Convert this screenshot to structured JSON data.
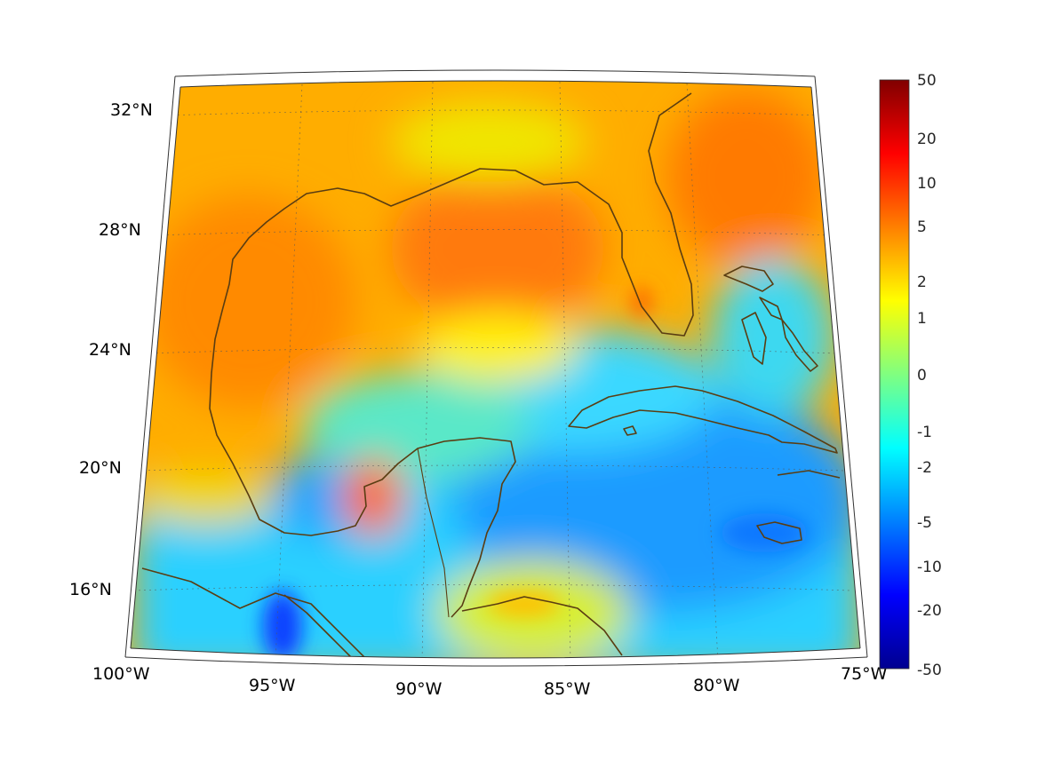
{
  "map": {
    "projection": "conic",
    "extent": {
      "lon": [
        -100,
        -75
      ],
      "lat": [
        14,
        32
      ]
    },
    "lon_tick_labels": [
      "100°W",
      "95°W",
      "90°W",
      "85°W",
      "80°W",
      "75°W"
    ],
    "lat_tick_labels": [
      "32°N",
      "28°N",
      "24°N",
      "20°N",
      "16°N"
    ],
    "coastline_color": "#5a3d12",
    "colormap": "jet"
  },
  "colorbar": {
    "labels": [
      "50",
      "20",
      "10",
      "5",
      "2",
      "1",
      "0",
      "-1",
      "-2",
      "-5",
      "-10",
      "-20",
      "-50"
    ],
    "colors": [
      "#00008f",
      "#0000ff",
      "#0080ff",
      "#00ffff",
      "#80ff80",
      "#ffff00",
      "#ff8000",
      "#ff0000",
      "#800000"
    ]
  }
}
